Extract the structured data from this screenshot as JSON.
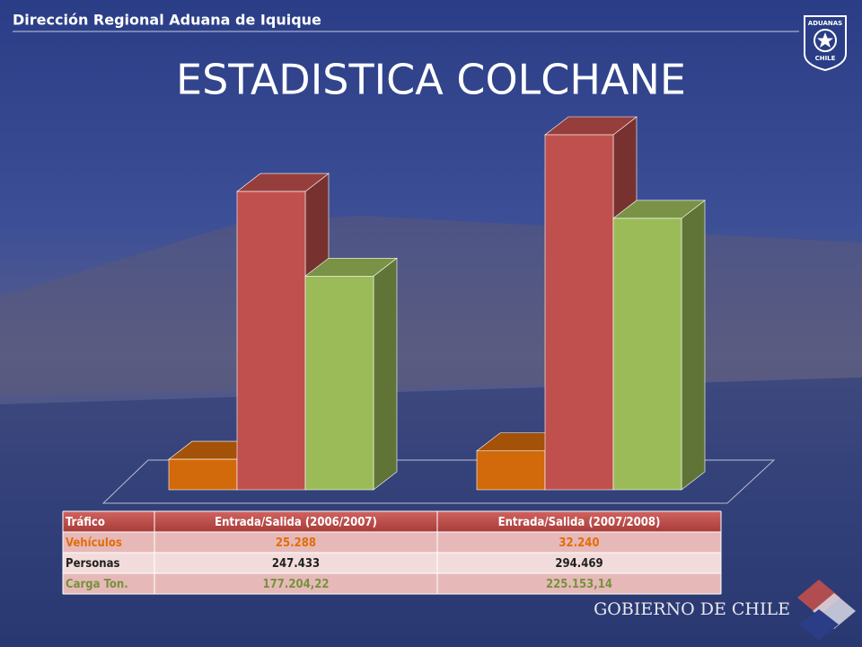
{
  "header": "Dirección Regional Aduana de Iquique",
  "logo": {
    "top": "ADUANAS",
    "bottom": "CHILE"
  },
  "footer": "GOBIERNO DE CHILE",
  "chart_data": {
    "type": "bar",
    "title": "ESTADISTICA COLCHANE",
    "row_header": "Tráfico",
    "categories": [
      "Entrada/Salida (2006/2007)",
      "Entrada/Salida (2007/2008)"
    ],
    "series": [
      {
        "name": "Vehículos",
        "color": "#d2690a",
        "label_color": "#e36c09",
        "values": [
          25288,
          32240
        ],
        "value_labels": [
          "25.288",
          "32.240"
        ]
      },
      {
        "name": "Personas",
        "color": "#c0504d",
        "label_color": "#1f1f1f",
        "values": [
          247433,
          294469
        ],
        "value_labels": [
          "247.433",
          "294.469"
        ]
      },
      {
        "name": "Carga Ton.",
        "color": "#9bbb59",
        "label_color": "#76923c",
        "values": [
          177204.22,
          225153.14
        ],
        "value_labels": [
          "177.204,22",
          "225.153,14"
        ]
      }
    ]
  }
}
